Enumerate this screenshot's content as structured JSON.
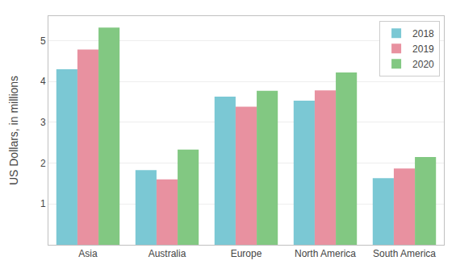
{
  "chart_data": {
    "type": "bar",
    "ylabel": "US Dollars, in millions",
    "categories": [
      "Asia",
      "Australia",
      "Europe",
      "North America",
      "South America"
    ],
    "series": [
      {
        "name": "2018",
        "color": "#7BC8D4",
        "values": [
          4.3,
          1.83,
          3.63,
          3.53,
          1.63
        ]
      },
      {
        "name": "2019",
        "color": "#E891A0",
        "values": [
          4.78,
          1.6,
          3.38,
          3.78,
          1.87
        ]
      },
      {
        "name": "2020",
        "color": "#82C882",
        "values": [
          5.32,
          2.33,
          3.77,
          4.22,
          2.15
        ]
      }
    ],
    "ylim": [
      0,
      5.6
    ],
    "yticks": [
      1.0,
      2.0,
      3.0,
      4.0,
      5.0
    ],
    "grid": true,
    "legend": "upper right"
  }
}
